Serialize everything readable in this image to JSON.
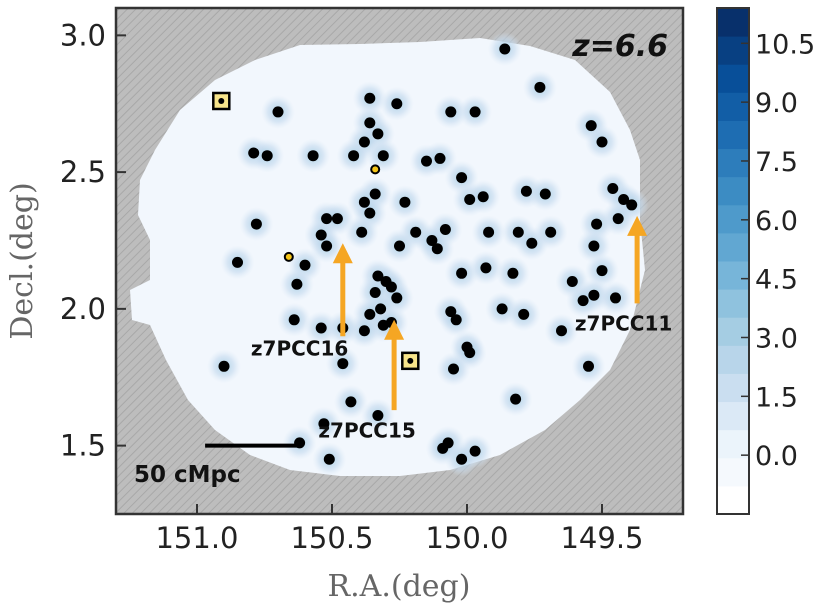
{
  "chart_data": {
    "type": "scatter",
    "xlabel": "R.A.(deg)",
    "ylabel": "Decl.(deg)",
    "xlim": [
      151.3,
      149.2
    ],
    "ylim": [
      1.25,
      3.1
    ],
    "xticks": [
      "151.0",
      "150.5",
      "150.0",
      "149.5"
    ],
    "xtick_values": [
      151.0,
      150.5,
      150.0,
      149.5
    ],
    "yticks": [
      "1.5",
      "2.0",
      "2.5",
      "3.0"
    ],
    "ytick_values": [
      1.5,
      2.0,
      2.5,
      3.0
    ],
    "redshift_label": "z=6.6",
    "scale_bar": {
      "label": "50 cMpc",
      "ra_start": 150.97,
      "ra_end": 150.63,
      "dec": 1.5
    },
    "colorbar": {
      "ticks": [
        "10.5",
        "9.0",
        "7.5",
        "6.0",
        "4.5",
        "3.0",
        "1.5",
        "0.0"
      ],
      "tick_values": [
        10.5,
        9.0,
        7.5,
        6.0,
        4.5,
        3.0,
        1.5,
        0.0
      ],
      "range": [
        -1.5,
        11.4
      ],
      "colors": [
        "#ffffff",
        "#eaf3fb",
        "#c6dbef",
        "#9ecae1",
        "#6baed6",
        "#4292c6",
        "#2171b5",
        "#08519c",
        "#08306b"
      ]
    },
    "colors": {
      "background_mask": "#bdbdbd",
      "field": "#f2f7fd",
      "overdensity": "#c6dbef",
      "galaxy": "#000000",
      "arrow": "#f5a623"
    },
    "annotations": [
      {
        "label": "z7PCC11",
        "ra": 149.42,
        "dec": 1.92,
        "arrow_ra": 149.37,
        "arrow_dec_from": 2.02,
        "arrow_dec_to": 2.34
      },
      {
        "label": "z7PCC16",
        "ra": 150.62,
        "dec": 1.83,
        "arrow_ra": 150.46,
        "arrow_dec_from": 1.9,
        "arrow_dec_to": 2.24
      },
      {
        "label": "z7PCC15",
        "ra": 150.37,
        "dec": 1.53,
        "arrow_ra": 150.27,
        "arrow_dec_from": 1.63,
        "arrow_dec_to": 1.96
      }
    ],
    "galaxies": [
      [
        150.36,
        2.77
      ],
      [
        150.26,
        2.75
      ],
      [
        150.06,
        2.72
      ],
      [
        149.97,
        2.72
      ],
      [
        150.7,
        2.72
      ],
      [
        150.36,
        2.68
      ],
      [
        150.33,
        2.64
      ],
      [
        150.38,
        2.61
      ],
      [
        149.73,
        2.81
      ],
      [
        149.86,
        2.95
      ],
      [
        149.54,
        2.67
      ],
      [
        149.5,
        2.61
      ],
      [
        150.79,
        2.57
      ],
      [
        150.74,
        2.56
      ],
      [
        150.57,
        2.56
      ],
      [
        150.42,
        2.56
      ],
      [
        150.31,
        2.56
      ],
      [
        150.15,
        2.54
      ],
      [
        150.1,
        2.55
      ],
      [
        150.02,
        2.48
      ],
      [
        150.34,
        2.42
      ],
      [
        150.38,
        2.39
      ],
      [
        150.36,
        2.35
      ],
      [
        150.23,
        2.39
      ],
      [
        149.99,
        2.4
      ],
      [
        149.94,
        2.41
      ],
      [
        149.78,
        2.43
      ],
      [
        149.71,
        2.42
      ],
      [
        149.46,
        2.44
      ],
      [
        149.42,
        2.4
      ],
      [
        149.39,
        2.38
      ],
      [
        149.44,
        2.33
      ],
      [
        150.52,
        2.33
      ],
      [
        150.48,
        2.33
      ],
      [
        150.54,
        2.27
      ],
      [
        150.52,
        2.23
      ],
      [
        150.39,
        2.28
      ],
      [
        150.19,
        2.28
      ],
      [
        150.08,
        2.29
      ],
      [
        149.92,
        2.28
      ],
      [
        149.81,
        2.28
      ],
      [
        149.76,
        2.24
      ],
      [
        149.69,
        2.28
      ],
      [
        149.52,
        2.31
      ],
      [
        150.78,
        2.31
      ],
      [
        150.25,
        2.23
      ],
      [
        150.11,
        2.22
      ],
      [
        150.13,
        2.25
      ],
      [
        149.53,
        2.23
      ],
      [
        149.5,
        2.14
      ],
      [
        150.85,
        2.17
      ],
      [
        150.6,
        2.16
      ],
      [
        150.33,
        2.12
      ],
      [
        150.3,
        2.1
      ],
      [
        150.28,
        2.08
      ],
      [
        150.34,
        2.06
      ],
      [
        150.02,
        2.13
      ],
      [
        149.93,
        2.15
      ],
      [
        149.83,
        2.13
      ],
      [
        150.63,
        2.09
      ],
      [
        150.26,
        2.04
      ],
      [
        150.32,
        2.0
      ],
      [
        150.36,
        1.98
      ],
      [
        150.31,
        1.94
      ],
      [
        150.28,
        1.95
      ],
      [
        150.38,
        1.92
      ],
      [
        149.87,
        2.0
      ],
      [
        149.79,
        1.98
      ],
      [
        149.61,
        2.1
      ],
      [
        149.53,
        2.05
      ],
      [
        149.45,
        2.04
      ],
      [
        149.57,
        2.03
      ],
      [
        150.64,
        1.96
      ],
      [
        150.54,
        1.93
      ],
      [
        150.46,
        1.93
      ],
      [
        150.06,
        1.99
      ],
      [
        150.04,
        1.96
      ],
      [
        150.0,
        1.86
      ],
      [
        149.99,
        1.84
      ],
      [
        150.05,
        1.78
      ],
      [
        149.65,
        1.92
      ],
      [
        149.55,
        1.79
      ],
      [
        150.9,
        1.79
      ],
      [
        150.46,
        1.8
      ],
      [
        150.43,
        1.66
      ],
      [
        150.33,
        1.61
      ],
      [
        149.82,
        1.67
      ],
      [
        150.53,
        1.58
      ],
      [
        150.07,
        1.51
      ],
      [
        150.09,
        1.49
      ],
      [
        149.97,
        1.48
      ],
      [
        150.02,
        1.45
      ],
      [
        150.51,
        1.45
      ],
      [
        150.62,
        1.51
      ]
    ],
    "marked_sources": [
      [
        150.91,
        2.76
      ],
      [
        150.21,
        1.81
      ]
    ],
    "small_sources": [
      [
        150.66,
        2.19
      ],
      [
        150.34,
        2.51
      ]
    ]
  }
}
